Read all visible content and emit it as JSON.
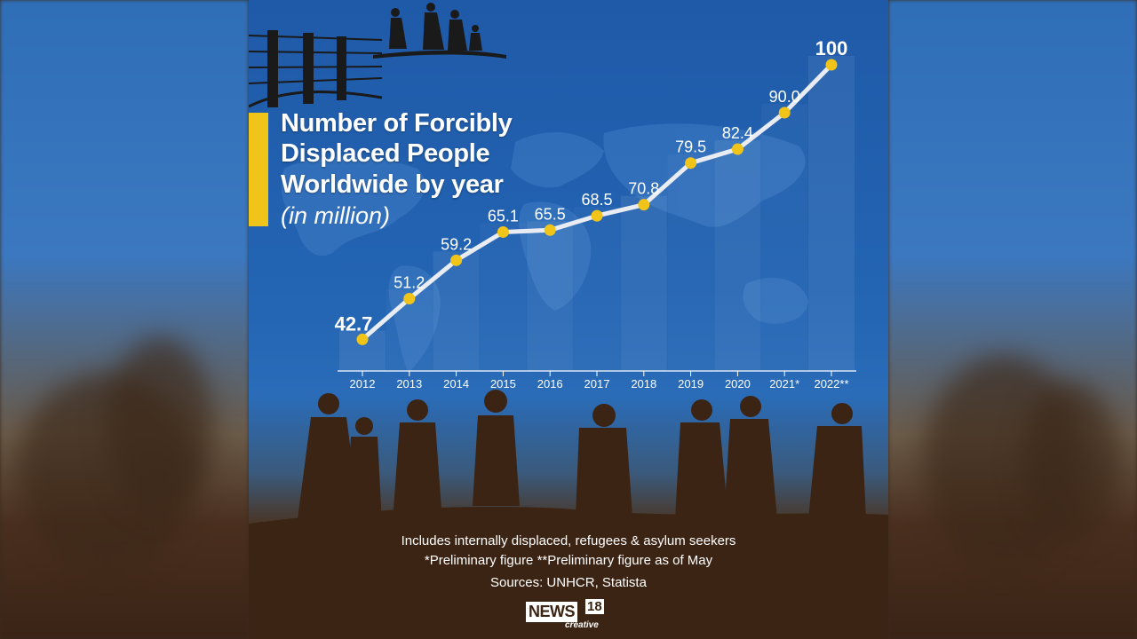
{
  "chart_data": {
    "type": "line",
    "title_lines": [
      "Number of Forcibly",
      "Displaced People",
      "Worldwide by year"
    ],
    "subtitle": "(in million)",
    "categories": [
      "2012",
      "2013",
      "2014",
      "2015",
      "2016",
      "2017",
      "2018",
      "2019",
      "2020",
      "2021*",
      "2022**"
    ],
    "values": [
      42.7,
      51.2,
      59.2,
      65.1,
      65.5,
      68.5,
      70.8,
      79.5,
      82.4,
      90.0,
      100
    ],
    "value_labels": [
      "42.7",
      "51.2",
      "59.2",
      "65.1",
      "65.5",
      "68.5",
      "70.8",
      "79.5",
      "82.4",
      "90.0",
      "100"
    ],
    "ylim": [
      40,
      100
    ],
    "grid": false,
    "line_color": "#e9edf3",
    "marker_color": "#f0c419"
  },
  "footnotes": {
    "line1": "Includes internally displaced, refugees & asylum seekers",
    "line2": "*Preliminary figure  **Preliminary figure as of May",
    "sources": "Sources: UNHCR, Statista"
  },
  "logo": {
    "main": "NEWS",
    "num": "18",
    "sub": "creative"
  },
  "colors": {
    "background_blue": "#2364b3",
    "accent_yellow": "#f0c419",
    "ground_brown": "#3b2414"
  },
  "icons": [
    "barbed-wire-fence-icon",
    "walking-people-silhouette-icon",
    "world-map-icon"
  ]
}
